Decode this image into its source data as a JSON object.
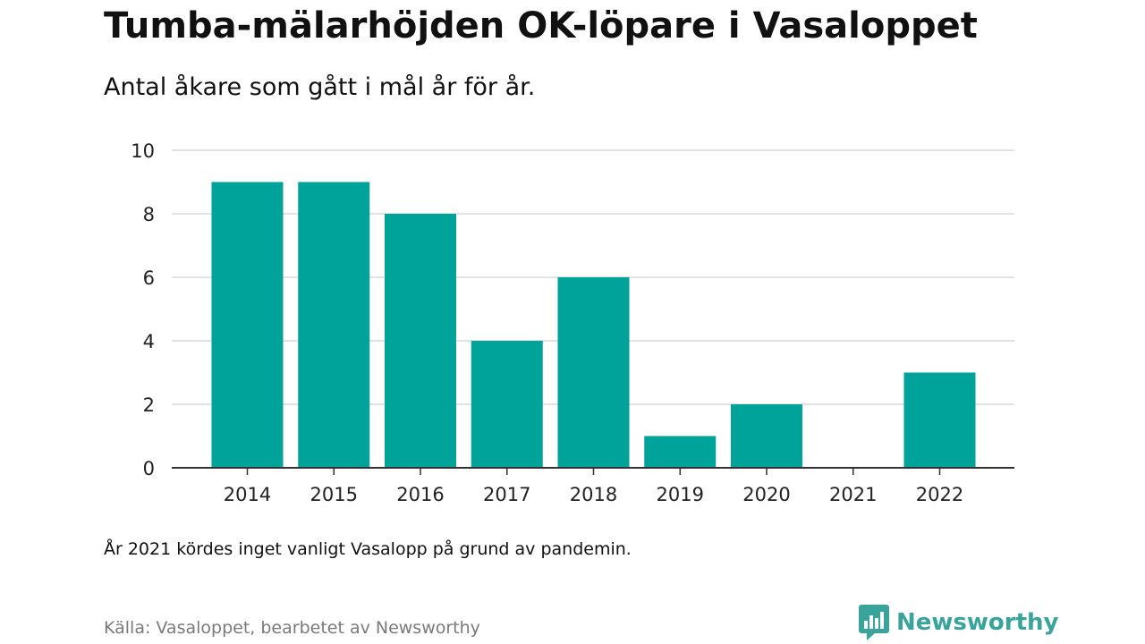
{
  "header": {
    "title": "Tumba-mälarhöjden OK-löpare i Vasaloppet",
    "subtitle": "Antal åkare som gått i mål år för år."
  },
  "chart_data": {
    "type": "bar",
    "categories": [
      "2014",
      "2015",
      "2016",
      "2017",
      "2018",
      "2019",
      "2020",
      "2021",
      "2022"
    ],
    "values": [
      9,
      9,
      8,
      4,
      6,
      1,
      2,
      0,
      3
    ],
    "yticks": [
      0,
      2,
      4,
      6,
      8,
      10
    ],
    "ylim": [
      0,
      10
    ],
    "grid": true,
    "legend": "none",
    "bar_color": "#00a39a"
  },
  "footer": {
    "note": "År 2021 kördes inget vanligt Vasalopp på grund av pandemin.",
    "source": "Källa: Vasaloppet, bearbetet av Newsworthy",
    "brand_name": "Newsworthy",
    "brand_icon": "newsworthy-logo-icon",
    "brand_color": "#3aa39c"
  }
}
